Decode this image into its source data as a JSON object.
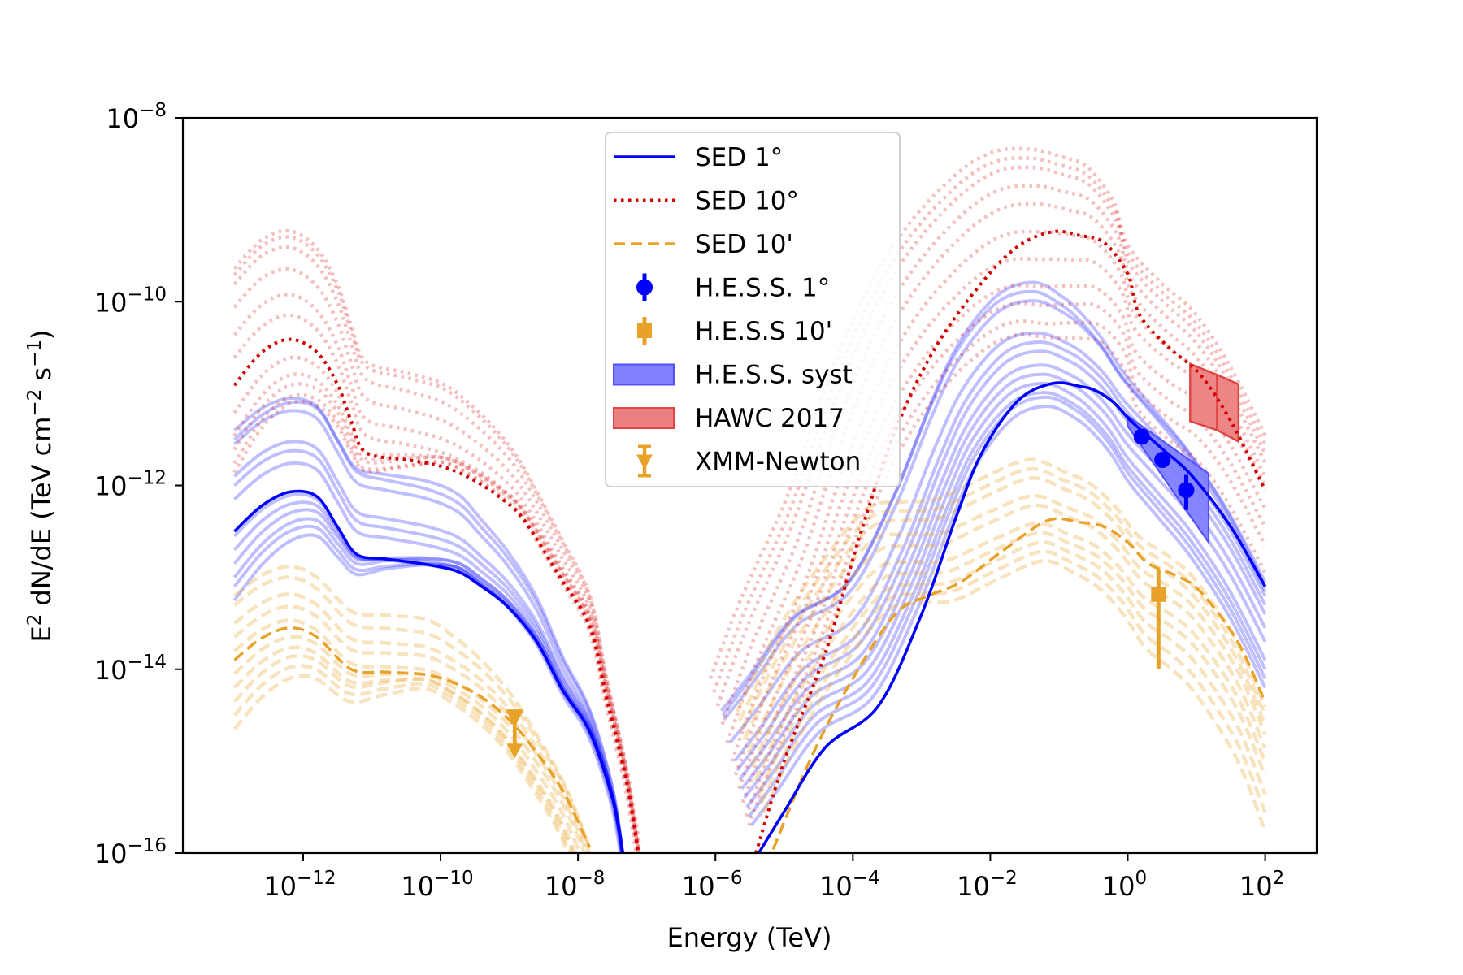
{
  "chart_data": {
    "type": "line",
    "title": "",
    "xlabel": "Energy (TeV)",
    "ylabel": "E² dN/dE (TeV cm⁻² s⁻¹)",
    "xscale": "log",
    "yscale": "log",
    "xlim_log10": [
      -13.75,
      2.75
    ],
    "ylim_log10": [
      -16,
      -8
    ],
    "grid": false,
    "legend_placement": "upper-center",
    "x_ticks": [
      {
        "exp": "−12",
        "log10": -12
      },
      {
        "exp": "−10",
        "log10": -10
      },
      {
        "exp": "−8",
        "log10": -8
      },
      {
        "exp": "−6",
        "log10": -6
      },
      {
        "exp": "−4",
        "log10": -4
      },
      {
        "exp": "−2",
        "log10": -2
      },
      {
        "exp": "0",
        "log10": 0
      },
      {
        "exp": "2",
        "log10": 2
      }
    ],
    "y_ticks": [
      {
        "exp": "−8",
        "log10": -8
      },
      {
        "exp": "−10",
        "log10": -10
      },
      {
        "exp": "−12",
        "log10": -12
      },
      {
        "exp": "−14",
        "log10": -14
      },
      {
        "exp": "−16",
        "log10": -16
      }
    ],
    "colors": {
      "sed_1deg": "#0000ff",
      "sed_10deg": "#d40000",
      "sed_10arcmin": "#e8a22a",
      "hess_1deg": "#0000ff",
      "hess_10arcmin": "#e8a22a",
      "hess_syst_fill": "#8080ff",
      "hess_syst_edge": "#5050ff",
      "hawc_fill": "#ec8080",
      "hawc_edge": "#e04545",
      "xmm": "#e8a22a"
    },
    "legend": [
      {
        "label": "SED 1°",
        "kind": "line-solid",
        "color_key": "sed_1deg"
      },
      {
        "label": "SED 10°",
        "kind": "line-dotted",
        "color_key": "sed_10deg"
      },
      {
        "label": "SED 10'",
        "kind": "line-dashed",
        "color_key": "sed_10arcmin"
      },
      {
        "label": "H.E.S.S. 1°",
        "kind": "marker-circle",
        "color_key": "hess_1deg"
      },
      {
        "label": "H.E.S.S 10'",
        "kind": "marker-square",
        "color_key": "hess_10arcmin"
      },
      {
        "label": "H.E.S.S. syst",
        "kind": "patch",
        "color_key": "hess_syst_fill",
        "edge_key": "hess_syst_edge"
      },
      {
        "label": "HAWC 2017",
        "kind": "patch",
        "color_key": "hawc_fill",
        "edge_key": "hawc_edge"
      },
      {
        "label": "XMM-Newton",
        "kind": "marker-ul",
        "color_key": "xmm"
      }
    ],
    "series": [
      {
        "name": "SED 1°",
        "style": "solid",
        "color_key": "sed_1deg",
        "segments": [
          {
            "log10_E": [
              -13.0,
              -12.6,
              -12.19,
              -11.8,
              -11.5,
              -11.22,
              -10.8,
              -10.2,
              -9.74,
              -9.4,
              -9.02,
              -8.6,
              -8.22,
              -7.83,
              -7.5,
              -7.35
            ],
            "log10_flux": [
              -12.5,
              -12.22,
              -12.07,
              -12.12,
              -12.45,
              -12.75,
              -12.8,
              -12.86,
              -12.94,
              -13.1,
              -13.32,
              -13.7,
              -14.23,
              -14.68,
              -15.4,
              -16.0
            ]
          },
          {
            "log10_E": [
              -5.37,
              -5.0,
              -4.4,
              -3.63,
              -3.0,
              -2.5,
              -2.12,
              -1.6,
              -1.1,
              -0.7,
              -0.46,
              -0.2,
              0.05,
              0.5,
              0.94,
              1.5,
              2.0
            ],
            "log10_flux": [
              -16.0,
              -15.55,
              -14.85,
              -14.4,
              -13.4,
              -12.35,
              -11.64,
              -11.08,
              -10.89,
              -10.92,
              -10.97,
              -11.1,
              -11.3,
              -11.6,
              -11.9,
              -12.45,
              -13.1
            ]
          }
        ]
      },
      {
        "name": "SED 10°",
        "style": "dotted",
        "color_key": "sed_10deg",
        "segments": [
          {
            "log10_E": [
              -13.0,
              -12.6,
              -12.19,
              -11.8,
              -11.5,
              -11.3,
              -11.09,
              -10.5,
              -9.95,
              -9.5,
              -9.1,
              -8.78,
              -8.26,
              -7.83,
              -7.59,
              -7.3,
              -7.12
            ],
            "log10_flux": [
              -10.91,
              -10.55,
              -10.41,
              -10.55,
              -10.9,
              -11.3,
              -11.64,
              -11.72,
              -11.8,
              -11.95,
              -12.15,
              -12.38,
              -13.0,
              -13.53,
              -14.3,
              -15.2,
              -16.0
            ]
          },
          {
            "log10_E": [
              -5.41,
              -5.0,
              -4.39,
              -3.9,
              -3.38,
              -2.8,
              -2.12,
              -1.6,
              -1.1,
              -0.7,
              -0.34,
              0.0,
              0.17,
              0.6,
              1.05,
              1.5,
              2.0
            ],
            "log10_flux": [
              -16.0,
              -15.0,
              -13.8,
              -12.55,
              -11.4,
              -10.5,
              -9.79,
              -9.4,
              -9.24,
              -9.28,
              -9.36,
              -9.7,
              -10.14,
              -10.5,
              -10.79,
              -11.3,
              -12.05
            ]
          }
        ]
      },
      {
        "name": "SED 10'",
        "style": "dashed",
        "color_key": "sed_10arcmin",
        "segments": [
          {
            "log10_E": [
              -13.0,
              -12.6,
              -12.19,
              -11.8,
              -11.3,
              -10.8,
              -10.2,
              -9.8,
              -9.41,
              -9.0,
              -8.63,
              -8.2,
              -7.83
            ],
            "log10_flux": [
              -13.9,
              -13.66,
              -13.55,
              -13.65,
              -14.0,
              -14.03,
              -14.06,
              -14.15,
              -14.3,
              -14.55,
              -14.88,
              -15.35,
              -15.94
            ]
          },
          {
            "log10_E": [
              -5.16,
              -4.6,
              -4.0,
              -3.38,
              -2.9,
              -2.43,
              -1.8,
              -1.16,
              -0.7,
              -0.34,
              0.0,
              0.3,
              0.7,
              1.05,
              1.6,
              2.0
            ],
            "log10_flux": [
              -15.96,
              -14.95,
              -14.1,
              -13.4,
              -13.2,
              -13.05,
              -12.7,
              -12.38,
              -12.4,
              -12.45,
              -12.62,
              -12.85,
              -12.98,
              -13.15,
              -13.7,
              -14.36
            ]
          }
        ]
      }
    ],
    "faint_families": [
      {
        "name": "SED 1° variants",
        "style": "solid",
        "color_key": "sed_1deg",
        "alpha": 0.25,
        "curves": [
          {
            "left_shift": [
              1.0,
              0.9,
              0.0
            ],
            "right_shift": [
              1.55,
              1.0,
              -0.05
            ]
          },
          {
            "left_shift": [
              1.1,
              0.8,
              0.0
            ],
            "right_shift": [
              1.45,
              0.9,
              0.05
            ]
          },
          {
            "left_shift": [
              0.95,
              0.7,
              -0.05
            ],
            "right_shift": [
              1.5,
              1.1,
              0.0
            ]
          },
          {
            "left_shift": [
              0.6,
              0.4,
              0.0
            ],
            "right_shift": [
              1.2,
              0.55,
              -0.1
            ]
          },
          {
            "left_shift": [
              0.5,
              0.3,
              0.0
            ],
            "right_shift": [
              1.0,
              0.45,
              -0.2
            ]
          },
          {
            "left_shift": [
              0.35,
              0.2,
              0.0
            ],
            "right_shift": [
              0.9,
              0.35,
              -0.3
            ]
          },
          {
            "left_shift": [
              -0.05,
              0.0,
              0.0
            ],
            "right_shift": [
              0.8,
              0.2,
              -0.45
            ]
          },
          {
            "left_shift": [
              -0.2,
              0.05,
              0.0
            ],
            "right_shift": [
              0.7,
              0.1,
              -0.6
            ]
          },
          {
            "left_shift": [
              -0.35,
              0.1,
              0.0
            ],
            "right_shift": [
              0.6,
              0.0,
              -0.8
            ]
          },
          {
            "left_shift": [
              -0.5,
              0.1,
              0.0
            ],
            "right_shift": [
              0.5,
              -0.1,
              -0.9
            ]
          },
          {
            "left_shift": [
              -0.6,
              0.05,
              -0.05
            ],
            "right_shift": [
              0.4,
              -0.15,
              -1.0
            ]
          },
          {
            "left_shift": [
              -0.75,
              0.05,
              -0.1
            ],
            "right_shift": [
              0.3,
              -0.25,
              -1.1
            ]
          }
        ]
      },
      {
        "name": "SED 10° variants",
        "style": "dotted",
        "color_key": "sed_10deg",
        "alpha": 0.25,
        "curves": [
          {
            "left_shift": [
              1.27,
              0.9,
              0.0
            ],
            "right_shift": [
              1.9,
              0.9,
              0.6
            ]
          },
          {
            "left_shift": [
              1.2,
              0.85,
              0.0
            ],
            "right_shift": [
              1.75,
              0.8,
              0.5
            ]
          },
          {
            "left_shift": [
              1.1,
              0.7,
              0.0
            ],
            "right_shift": [
              1.6,
              0.7,
              0.4
            ]
          },
          {
            "left_shift": [
              0.85,
              0.5,
              0.0
            ],
            "right_shift": [
              1.4,
              0.5,
              0.3
            ]
          },
          {
            "left_shift": [
              0.55,
              0.3,
              0.0
            ],
            "right_shift": [
              1.2,
              0.3,
              0.15
            ]
          },
          {
            "left_shift": [
              0.3,
              0.15,
              0.0
            ],
            "right_shift": [
              1.0,
              0.0,
              0.05
            ]
          },
          {
            "left_shift": [
              -0.3,
              0.1,
              0.1
            ],
            "right_shift": [
              0.85,
              -0.3,
              0.0
            ]
          },
          {
            "left_shift": [
              -0.55,
              0.1,
              0.05
            ],
            "right_shift": [
              0.7,
              -0.6,
              -0.2
            ]
          },
          {
            "left_shift": [
              -0.7,
              0.1,
              0.0
            ],
            "right_shift": [
              0.55,
              -0.8,
              -0.4
            ]
          },
          {
            "left_shift": [
              -0.85,
              0.05,
              -0.05
            ],
            "right_shift": [
              0.4,
              -1.0,
              -0.6
            ]
          },
          {
            "left_shift": [
              -0.95,
              0.05,
              -0.1
            ],
            "right_shift": [
              0.3,
              -1.15,
              -0.9
            ]
          }
        ]
      },
      {
        "name": "SED 10' variants",
        "style": "dashed",
        "color_key": "sed_10arcmin",
        "alpha": 0.3,
        "curves": [
          {
            "left_shift": [
              0.7,
              0.6,
              0.0
            ],
            "right_shift": [
              1.5,
              0.6,
              -0.05
            ]
          },
          {
            "left_shift": [
              0.6,
              0.45,
              0.0
            ],
            "right_shift": [
              1.4,
              0.5,
              -0.15
            ]
          },
          {
            "left_shift": [
              0.4,
              0.3,
              -0.05
            ],
            "right_shift": [
              1.3,
              0.4,
              -0.25
            ]
          },
          {
            "left_shift": [
              0.25,
              0.2,
              -0.1
            ],
            "right_shift": [
              1.2,
              0.2,
              -0.35
            ]
          },
          {
            "left_shift": [
              0.1,
              0.05,
              -0.15
            ],
            "right_shift": [
              1.05,
              0.1,
              -0.5
            ]
          },
          {
            "left_shift": [
              -0.15,
              0.0,
              -0.25
            ],
            "right_shift": [
              0.9,
              -0.1,
              -0.65
            ]
          },
          {
            "left_shift": [
              -0.3,
              -0.05,
              -0.35
            ],
            "right_shift": [
              0.75,
              -0.2,
              -0.8
            ]
          },
          {
            "left_shift": [
              -0.45,
              -0.05,
              -0.4
            ],
            "right_shift": [
              0.6,
              -0.3,
              -1.0
            ]
          },
          {
            "left_shift": [
              -0.6,
              -0.1,
              -0.45
            ],
            "right_shift": [
              0.5,
              -0.4,
              -1.2
            ]
          },
          {
            "left_shift": [
              -0.75,
              -0.15,
              -0.5
            ],
            "right_shift": [
              0.4,
              -0.5,
              -1.4
            ]
          }
        ]
      }
    ],
    "hess_1deg_points": [
      {
        "E": 1.6,
        "flux": 3.4e-12,
        "flux_lo": 3.1e-12,
        "flux_hi": 3.7e-12
      },
      {
        "E": 3.2,
        "flux": 1.9e-12,
        "flux_lo": 1.6e-12,
        "flux_hi": 2.3e-12
      },
      {
        "E": 7.1,
        "flux": 8.9e-13,
        "flux_lo": 5.4e-13,
        "flux_hi": 1.3e-12
      }
    ],
    "hess_10arcmin_points": [
      {
        "E": 2.8,
        "flux": 6.5e-14,
        "flux_lo": 1e-14,
        "flux_hi": 1.2e-13
      }
    ],
    "xmm_upper_limits": [
      {
        "E": 1.2e-09,
        "flux": 3.5e-15
      }
    ],
    "hess_syst_band": {
      "E": [
        1.0,
        15.0
      ],
      "upper": [
        5.7e-12,
        1.35e-12
      ],
      "lower": [
        4.4e-12,
        2.4e-13
      ]
    },
    "hawc_2017_band": {
      "E": [
        8.1,
        20.0,
        41.0
      ],
      "upper": [
        2.1e-11,
        1.6e-11,
        1.26e-11
      ],
      "lower": [
        5e-12,
        4e-12,
        3e-12
      ]
    }
  }
}
